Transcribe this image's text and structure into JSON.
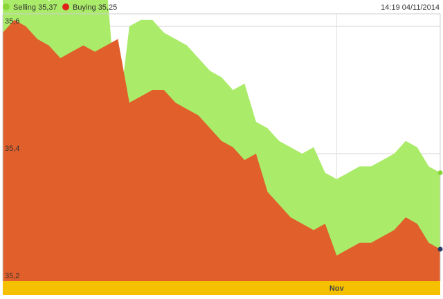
{
  "header": {
    "legend": [
      {
        "label": "Selling 35,37",
        "color": "#8ad639"
      },
      {
        "label": "Buying 35,25",
        "color": "#e0201b"
      }
    ],
    "timestamp": "14:19 04/11/2014"
  },
  "chart_data": {
    "type": "area",
    "title": "",
    "xlabel": "",
    "ylabel": "",
    "ylim": [
      35.2,
      35.6
    ],
    "ytick_labels": [
      "35,2",
      "35,4",
      "35,6"
    ],
    "yticks": [
      35.2,
      35.4,
      35.6
    ],
    "x_range": [
      0,
      38
    ],
    "x_ticks": [
      {
        "x": 29,
        "label": "Nov"
      }
    ],
    "grid": true,
    "legend_placement": "top-left",
    "series": [
      {
        "name": "Selling",
        "color": "#aaeb69",
        "values": [
          35.67,
          35.68,
          35.67,
          35.66,
          35.64,
          35.65,
          35.66,
          35.65,
          35.66,
          35.67,
          35.45,
          35.6,
          35.61,
          35.61,
          35.59,
          35.58,
          35.57,
          35.55,
          35.53,
          35.52,
          35.5,
          35.51,
          35.45,
          35.44,
          35.42,
          35.41,
          35.4,
          35.41,
          35.37,
          35.36,
          35.37,
          35.38,
          35.38,
          35.39,
          35.4,
          35.42,
          35.41,
          35.38,
          35.37
        ]
      },
      {
        "name": "Buying",
        "color": "#e05f2b",
        "values": [
          35.59,
          35.61,
          35.6,
          35.58,
          35.57,
          35.55,
          35.56,
          35.57,
          35.56,
          35.57,
          35.58,
          35.48,
          35.49,
          35.5,
          35.5,
          35.48,
          35.47,
          35.46,
          35.44,
          35.42,
          35.41,
          35.39,
          35.4,
          35.34,
          35.32,
          35.3,
          35.29,
          35.28,
          35.29,
          35.24,
          35.25,
          35.26,
          35.26,
          35.27,
          35.28,
          35.3,
          35.29,
          35.26,
          35.25
        ]
      }
    ]
  }
}
